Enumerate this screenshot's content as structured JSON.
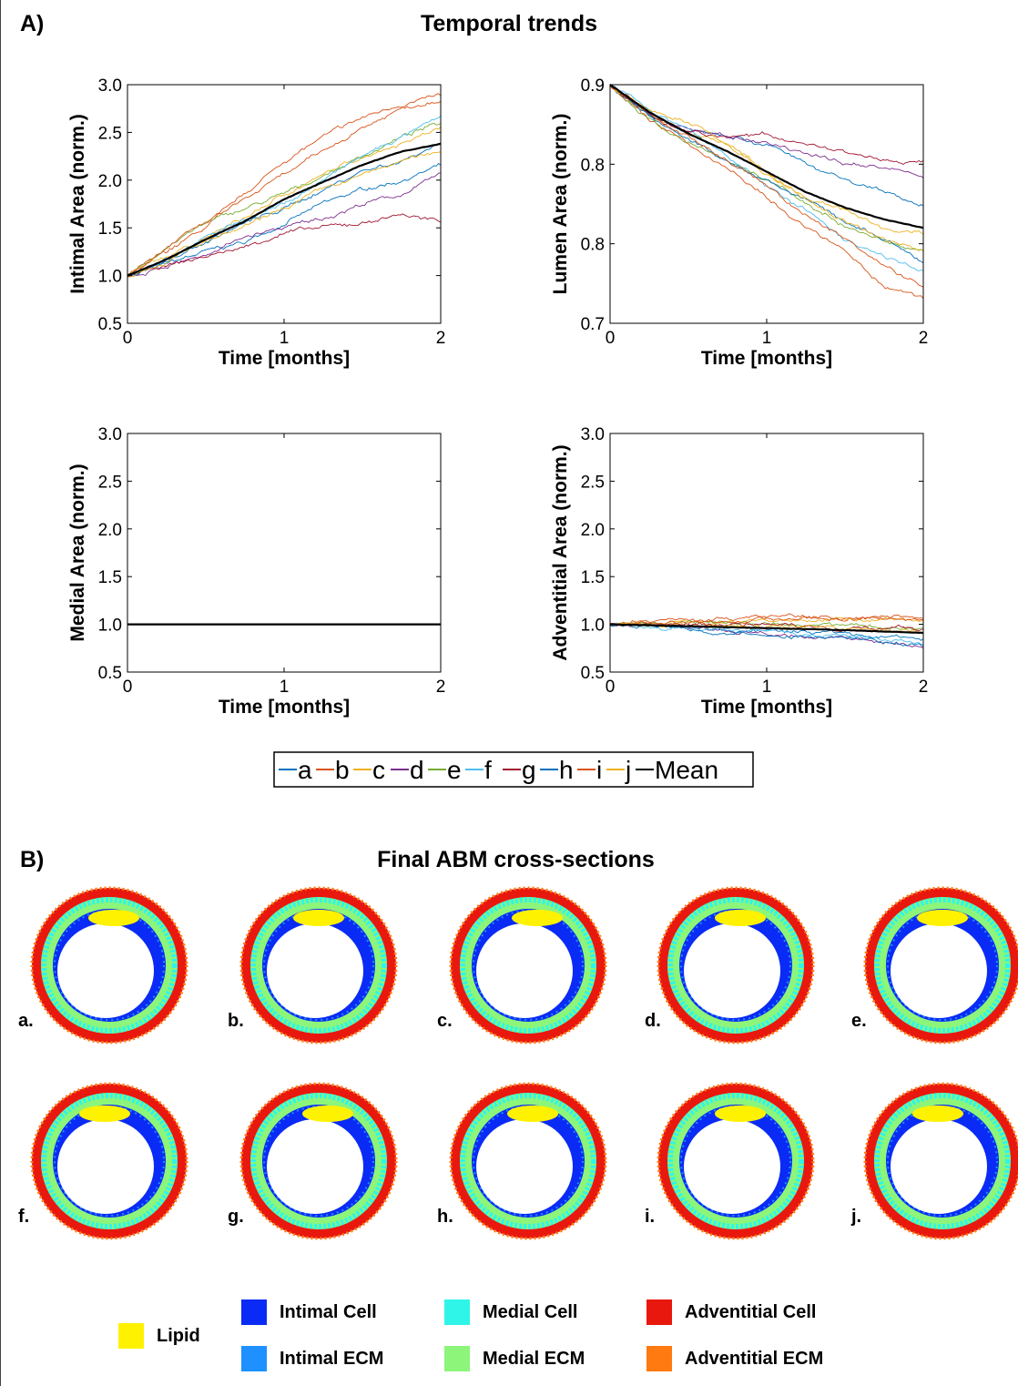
{
  "section_a": {
    "label": "A)",
    "title": "Temporal trends"
  },
  "section_b": {
    "label": "B)",
    "title": "Final ABM cross-sections"
  },
  "chart_data": [
    {
      "type": "line",
      "xlabel": "Time [months]",
      "ylabel": "Intimal Area (norm.)",
      "xlim": [
        0,
        2
      ],
      "ylim": [
        0.5,
        3.0
      ],
      "xticks": [
        "0",
        "1",
        "2"
      ],
      "yticks": [
        "0.5",
        "1.0",
        "1.5",
        "2.0",
        "2.5",
        "3.0"
      ],
      "x": [
        0,
        0.25,
        0.5,
        0.75,
        1.0,
        1.25,
        1.5,
        1.75,
        2.0
      ],
      "series": [
        {
          "name": "a",
          "values": [
            1.0,
            1.12,
            1.25,
            1.35,
            1.55,
            1.75,
            1.9,
            2.0,
            2.15
          ]
        },
        {
          "name": "b",
          "values": [
            1.0,
            1.25,
            1.5,
            1.85,
            2.2,
            2.45,
            2.65,
            2.8,
            2.88
          ]
        },
        {
          "name": "c",
          "values": [
            1.0,
            1.2,
            1.4,
            1.6,
            1.85,
            2.05,
            2.25,
            2.4,
            2.55
          ]
        },
        {
          "name": "d",
          "values": [
            1.0,
            1.1,
            1.22,
            1.4,
            1.5,
            1.6,
            1.75,
            1.85,
            2.05
          ]
        },
        {
          "name": "e",
          "values": [
            1.0,
            1.3,
            1.55,
            1.7,
            1.85,
            2.05,
            2.25,
            2.45,
            2.6
          ]
        },
        {
          "name": "f",
          "values": [
            1.0,
            1.2,
            1.4,
            1.6,
            1.75,
            2.0,
            2.25,
            2.45,
            2.65
          ]
        },
        {
          "name": "g",
          "values": [
            1.0,
            1.1,
            1.2,
            1.3,
            1.45,
            1.5,
            1.55,
            1.65,
            1.55
          ]
        },
        {
          "name": "h",
          "values": [
            1.0,
            1.15,
            1.35,
            1.55,
            1.7,
            1.9,
            2.1,
            2.2,
            2.4
          ]
        },
        {
          "name": "i",
          "values": [
            1.0,
            1.3,
            1.55,
            1.8,
            2.05,
            2.3,
            2.55,
            2.75,
            2.85
          ]
        },
        {
          "name": "j",
          "values": [
            1.0,
            1.15,
            1.35,
            1.5,
            1.7,
            1.9,
            2.05,
            2.2,
            2.3
          ]
        },
        {
          "name": "Mean",
          "values": [
            1.0,
            1.17,
            1.38,
            1.57,
            1.8,
            1.98,
            2.16,
            2.3,
            2.38
          ]
        }
      ]
    },
    {
      "type": "line",
      "xlabel": "Time [months]",
      "ylabel": "Lumen Area (norm.)",
      "xlim": [
        0,
        2
      ],
      "ylim": [
        0.7,
        0.9
      ],
      "xticks": [
        "0",
        "1",
        "2"
      ],
      "yticks": [
        "0.7",
        "0.8",
        "0.8",
        "0.9"
      ],
      "x": [
        0,
        0.25,
        0.5,
        0.75,
        1.0,
        1.25,
        1.5,
        1.75,
        2.0
      ],
      "series": [
        {
          "name": "a",
          "values": [
            0.9,
            0.875,
            0.86,
            0.86,
            0.85,
            0.835,
            0.82,
            0.81,
            0.8
          ]
        },
        {
          "name": "b",
          "values": [
            0.9,
            0.87,
            0.85,
            0.83,
            0.805,
            0.78,
            0.76,
            0.73,
            0.72
          ]
        },
        {
          "name": "c",
          "values": [
            0.9,
            0.875,
            0.86,
            0.85,
            0.825,
            0.805,
            0.795,
            0.78,
            0.775
          ]
        },
        {
          "name": "d",
          "values": [
            0.9,
            0.875,
            0.865,
            0.855,
            0.85,
            0.84,
            0.835,
            0.83,
            0.825
          ]
        },
        {
          "name": "e",
          "values": [
            0.9,
            0.87,
            0.85,
            0.835,
            0.82,
            0.8,
            0.78,
            0.77,
            0.76
          ]
        },
        {
          "name": "f",
          "values": [
            0.9,
            0.88,
            0.86,
            0.84,
            0.815,
            0.795,
            0.77,
            0.755,
            0.745
          ]
        },
        {
          "name": "g",
          "values": [
            0.9,
            0.875,
            0.86,
            0.855,
            0.86,
            0.85,
            0.845,
            0.835,
            0.835
          ]
        },
        {
          "name": "h",
          "values": [
            0.9,
            0.875,
            0.855,
            0.835,
            0.82,
            0.805,
            0.785,
            0.77,
            0.75
          ]
        },
        {
          "name": "i",
          "values": [
            0.9,
            0.875,
            0.855,
            0.835,
            0.815,
            0.79,
            0.77,
            0.75,
            0.73
          ]
        },
        {
          "name": "j",
          "values": [
            0.9,
            0.88,
            0.87,
            0.85,
            0.825,
            0.805,
            0.785,
            0.77,
            0.76
          ]
        },
        {
          "name": "Mean",
          "values": [
            0.9,
            0.877,
            0.859,
            0.844,
            0.827,
            0.81,
            0.797,
            0.787,
            0.78
          ]
        }
      ]
    },
    {
      "type": "line",
      "xlabel": "Time [months]",
      "ylabel": "Medial Area (norm.)",
      "xlim": [
        0,
        2
      ],
      "ylim": [
        0.5,
        3.0
      ],
      "xticks": [
        "0",
        "1",
        "2"
      ],
      "yticks": [
        "0.5",
        "1.0",
        "1.5",
        "2.0",
        "2.5",
        "3.0"
      ],
      "x": [
        0,
        0.5,
        1.0,
        1.5,
        2.0
      ],
      "series": [
        {
          "name": "a",
          "values": [
            1.0,
            1.0,
            1.0,
            1.0,
            1.0
          ]
        },
        {
          "name": "b",
          "values": [
            1.0,
            1.0,
            1.0,
            1.0,
            1.0
          ]
        },
        {
          "name": "c",
          "values": [
            1.0,
            1.0,
            1.0,
            1.0,
            1.0
          ]
        },
        {
          "name": "d",
          "values": [
            1.0,
            1.0,
            1.0,
            1.0,
            1.0
          ]
        },
        {
          "name": "e",
          "values": [
            1.0,
            1.0,
            1.0,
            1.0,
            1.0
          ]
        },
        {
          "name": "f",
          "values": [
            1.0,
            1.0,
            1.0,
            1.0,
            1.0
          ]
        },
        {
          "name": "g",
          "values": [
            1.0,
            1.0,
            1.0,
            1.0,
            1.0
          ]
        },
        {
          "name": "h",
          "values": [
            1.0,
            1.0,
            1.0,
            1.0,
            1.0
          ]
        },
        {
          "name": "i",
          "values": [
            1.0,
            1.0,
            1.0,
            1.0,
            1.0
          ]
        },
        {
          "name": "j",
          "values": [
            1.0,
            1.0,
            1.0,
            1.0,
            1.0
          ]
        },
        {
          "name": "Mean",
          "values": [
            1.0,
            1.0,
            1.0,
            1.0,
            1.0
          ]
        }
      ]
    },
    {
      "type": "line",
      "xlabel": "Time [months]",
      "ylabel": "Adventitial Area (norm.)",
      "xlim": [
        0,
        2
      ],
      "ylim": [
        0.5,
        3.0
      ],
      "xticks": [
        "0",
        "1",
        "2"
      ],
      "yticks": [
        "0.5",
        "1.0",
        "1.5",
        "2.0",
        "2.5",
        "3.0"
      ],
      "x": [
        0,
        0.5,
        1.0,
        1.5,
        2.0
      ],
      "series": [
        {
          "name": "a",
          "values": [
            1.0,
            0.97,
            0.93,
            0.9,
            0.85
          ]
        },
        {
          "name": "b",
          "values": [
            1.0,
            1.05,
            1.08,
            1.07,
            1.08
          ]
        },
        {
          "name": "c",
          "values": [
            1.0,
            1.02,
            1.03,
            1.04,
            1.05
          ]
        },
        {
          "name": "d",
          "values": [
            1.0,
            0.95,
            0.9,
            0.85,
            0.78
          ]
        },
        {
          "name": "e",
          "values": [
            1.0,
            1.03,
            1.0,
            0.98,
            0.95
          ]
        },
        {
          "name": "f",
          "values": [
            1.0,
            0.97,
            0.92,
            0.87,
            0.82
          ]
        },
        {
          "name": "g",
          "values": [
            1.0,
            1.0,
            0.98,
            0.97,
            0.96
          ]
        },
        {
          "name": "h",
          "values": [
            1.0,
            0.96,
            0.9,
            0.85,
            0.8
          ]
        },
        {
          "name": "i",
          "values": [
            1.0,
            1.04,
            1.06,
            1.08,
            1.07
          ]
        },
        {
          "name": "j",
          "values": [
            1.0,
            0.99,
            0.96,
            0.95,
            0.93
          ]
        },
        {
          "name": "Mean",
          "values": [
            1.0,
            0.98,
            0.96,
            0.94,
            0.91
          ]
        }
      ]
    }
  ],
  "series_colors": [
    "#0072BD",
    "#D95319",
    "#EDB120",
    "#7E2F8E",
    "#77AC30",
    "#4DBEEE",
    "#A2142F",
    "#0072BD",
    "#D95319",
    "#EDB120",
    "#000000"
  ],
  "series_legend": [
    "a",
    "b",
    "c",
    "d",
    "e",
    "f",
    "g",
    "h",
    "i",
    "j",
    "Mean"
  ],
  "cross_sections": [
    {
      "letter": "a.",
      "lipid_cx": 0.05
    },
    {
      "letter": "b.",
      "lipid_cx": 0.0
    },
    {
      "letter": "c.",
      "lipid_cx": 0.1
    },
    {
      "letter": "d.",
      "lipid_cx": 0.05
    },
    {
      "letter": "e.",
      "lipid_cx": 0.0
    },
    {
      "letter": "f.",
      "lipid_cx": -0.05
    },
    {
      "letter": "g.",
      "lipid_cx": 0.1
    },
    {
      "letter": "h.",
      "lipid_cx": 0.05
    },
    {
      "letter": "i.",
      "lipid_cx": 0.05
    },
    {
      "letter": "j.",
      "lipid_cx": -0.05
    }
  ],
  "tissue_legend": [
    {
      "label": "Lipid",
      "color": "#FFF200"
    },
    {
      "label": "Intimal Cell",
      "color": "#0A2BF5"
    },
    {
      "label": "Intimal ECM",
      "color": "#1E90FF"
    },
    {
      "label": "Medial Cell",
      "color": "#2FF5E8"
    },
    {
      "label": "Medial ECM",
      "color": "#8CF57A"
    },
    {
      "label": "Adventitial Cell",
      "color": "#E8180E"
    },
    {
      "label": "Adventitial ECM",
      "color": "#FF7A10"
    }
  ]
}
